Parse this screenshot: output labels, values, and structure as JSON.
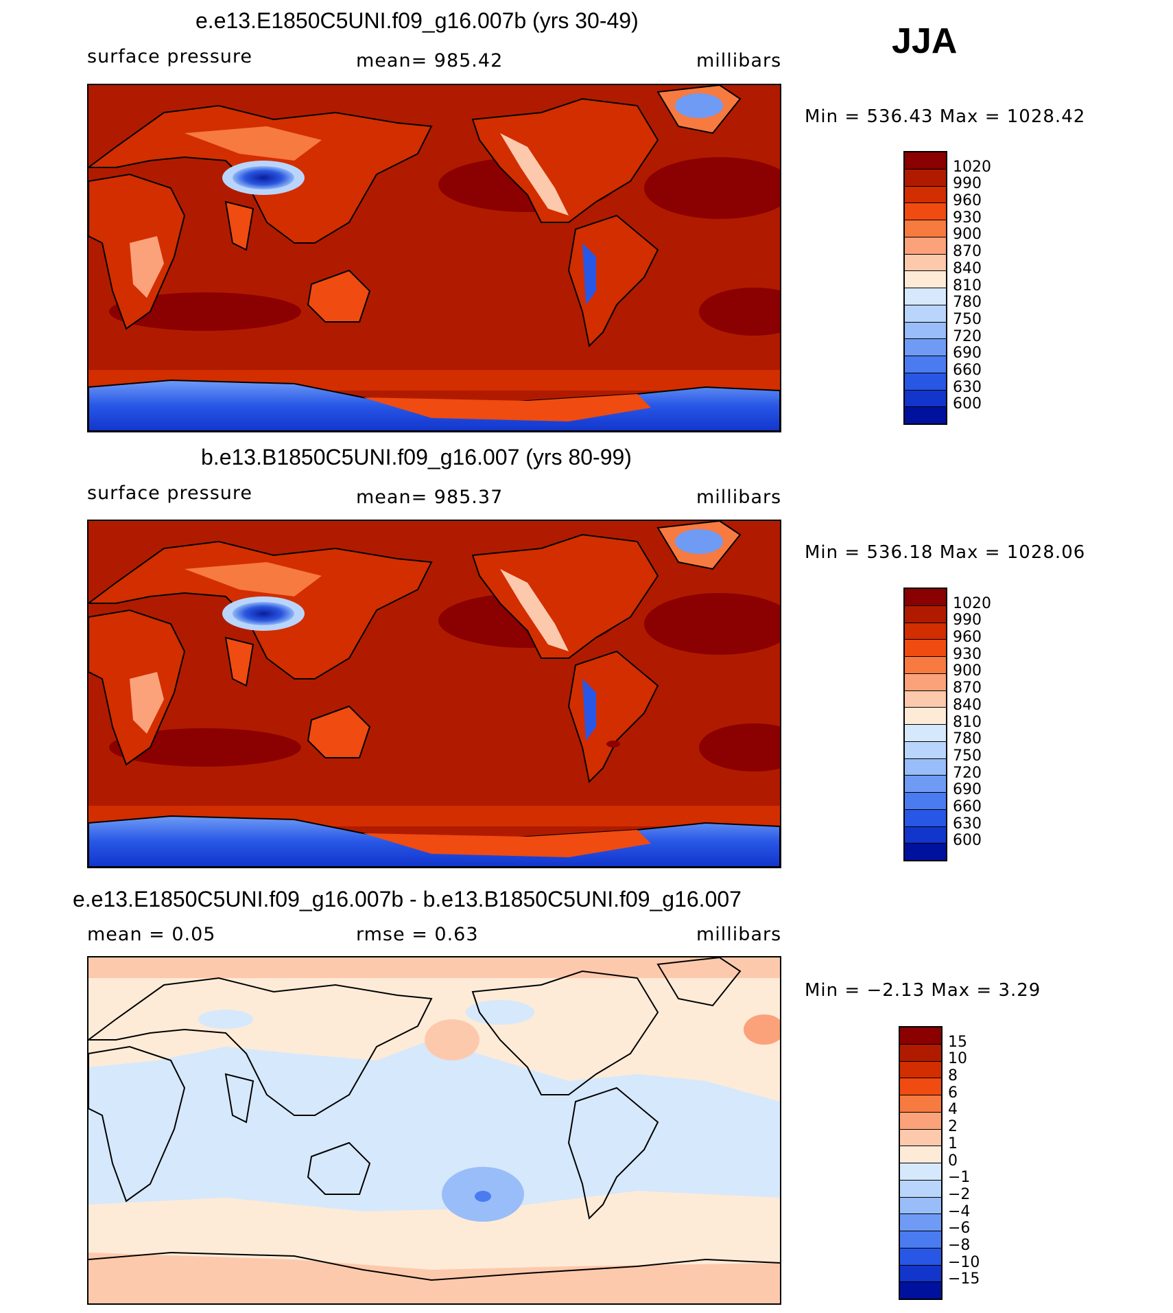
{
  "season": "JJA",
  "colorbars": {
    "abs": {
      "labels": [
        "1020",
        "990",
        "960",
        "930",
        "900",
        "870",
        "840",
        "810",
        "780",
        "750",
        "720",
        "690",
        "660",
        "630",
        "600"
      ],
      "colors": [
        "#8b0000",
        "#b01b00",
        "#d22e00",
        "#f04b10",
        "#f77a40",
        "#fba27a",
        "#fdc9ac",
        "#fdebd8",
        "#d6e8fb",
        "#bad5fb",
        "#98bdf9",
        "#6f9bf5",
        "#4a7bf0",
        "#2857e6",
        "#1235cc",
        "#00119e"
      ]
    },
    "diff": {
      "labels": [
        "15",
        "10",
        "8",
        "6",
        "4",
        "2",
        "1",
        "0",
        "−1",
        "−2",
        "−4",
        "−6",
        "−8",
        "−10",
        "−15"
      ],
      "colors": [
        "#8b0000",
        "#b01b00",
        "#d22e00",
        "#f04b10",
        "#f77a40",
        "#fba27a",
        "#fdc9ac",
        "#fdebd8",
        "#d6e8fb",
        "#bad5fb",
        "#98bdf9",
        "#6f9bf5",
        "#4a7bf0",
        "#2857e6",
        "#1235cc",
        "#00119e"
      ]
    }
  },
  "panels": [
    {
      "title": "e.e13.E1850C5UNI.f09_g16.007b (yrs 30-49)",
      "left": "surface pressure",
      "center": "mean= 985.42",
      "right": "millibars",
      "stats": "Min  =  536.43  Max  =  1028.42"
    },
    {
      "title": "b.e13.B1850C5UNI.f09_g16.007 (yrs 80-99)",
      "left": "surface pressure",
      "center": "mean= 985.37",
      "right": "millibars",
      "stats": "Min  =  536.18  Max  =  1028.06"
    },
    {
      "title": "e.e13.E1850C5UNI.f09_g16.007b - b.e13.B1850C5UNI.f09_g16.007",
      "left": "mean =      0.05",
      "center": "rmse =      0.63",
      "right": "millibars",
      "stats": "Min  =    −2.13  Max  =      3.29"
    }
  ],
  "chart_data": [
    {
      "type": "heatmap",
      "title": "e.e13.E1850C5UNI.f09_g16.007b (yrs 30-49)",
      "variable": "surface pressure",
      "units": "millibars",
      "mean": 985.42,
      "min": 536.43,
      "max": 1028.42,
      "season": "JJA",
      "contour_levels": [
        600,
        630,
        660,
        690,
        720,
        750,
        780,
        810,
        840,
        870,
        900,
        930,
        960,
        990,
        1020
      ]
    },
    {
      "type": "heatmap",
      "title": "b.e13.B1850C5UNI.f09_g16.007 (yrs 80-99)",
      "variable": "surface pressure",
      "units": "millibars",
      "mean": 985.37,
      "min": 536.18,
      "max": 1028.06,
      "season": "JJA",
      "contour_levels": [
        600,
        630,
        660,
        690,
        720,
        750,
        780,
        810,
        840,
        870,
        900,
        930,
        960,
        990,
        1020
      ]
    },
    {
      "type": "heatmap",
      "title": "e.e13.E1850C5UNI.f09_g16.007b - b.e13.B1850C5UNI.f09_g16.007",
      "units": "millibars",
      "mean": 0.05,
      "rmse": 0.63,
      "min": -2.13,
      "max": 3.29,
      "season": "JJA",
      "contour_levels": [
        -15,
        -10,
        -8,
        -6,
        -4,
        -2,
        -1,
        0,
        1,
        2,
        4,
        6,
        8,
        10,
        15
      ]
    }
  ]
}
